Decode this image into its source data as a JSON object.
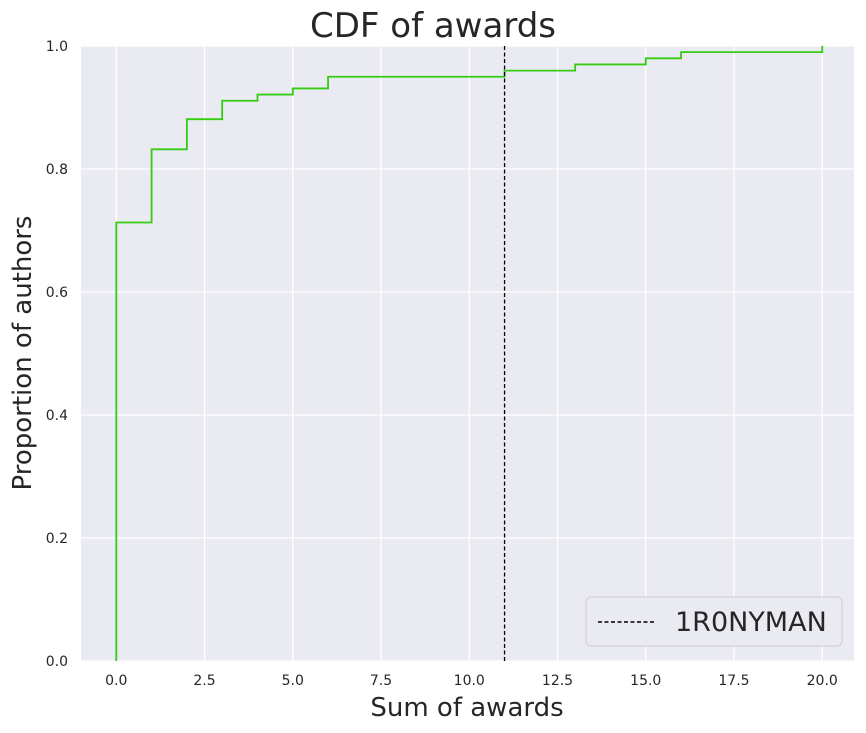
{
  "chart_data": {
    "type": "line",
    "subtype": "step-cdf",
    "title": "CDF of awards",
    "xlabel": "Sum of awards",
    "ylabel": "Proportion of authors",
    "xlim": [
      -1,
      20.9
    ],
    "ylim": [
      0,
      1
    ],
    "x_ticks": [
      0,
      2.5,
      5,
      7.5,
      10,
      12.5,
      15,
      17.5,
      20
    ],
    "x_tick_labels": [
      "0.0",
      "2.5",
      "5.0",
      "7.5",
      "10.0",
      "12.5",
      "15.0",
      "17.5",
      "20.0"
    ],
    "y_ticks": [
      0,
      0.2,
      0.4,
      0.6,
      0.8,
      1.0
    ],
    "y_tick_labels": [
      "0.0",
      "0.2",
      "0.4",
      "0.6",
      "0.8",
      "1.0"
    ],
    "grid": true,
    "background": "#eaeaf2",
    "series": [
      {
        "color": "#33cc11",
        "x": [
          0,
          0,
          1,
          2,
          3,
          4,
          5,
          6,
          11,
          13,
          15,
          16,
          20,
          20
        ],
        "y": [
          0,
          0.713,
          0.832,
          0.881,
          0.911,
          0.921,
          0.931,
          0.95,
          0.96,
          0.97,
          0.98,
          0.99,
          0.99,
          1.0
        ]
      }
    ],
    "reference_lines": [
      {
        "name": "1R0NYMAN",
        "x": 11,
        "orientation": "vertical",
        "style": "dashed",
        "color": "#000000"
      }
    ],
    "legend": {
      "position": "lower-right",
      "entries": [
        "1R0NYMAN"
      ]
    }
  }
}
